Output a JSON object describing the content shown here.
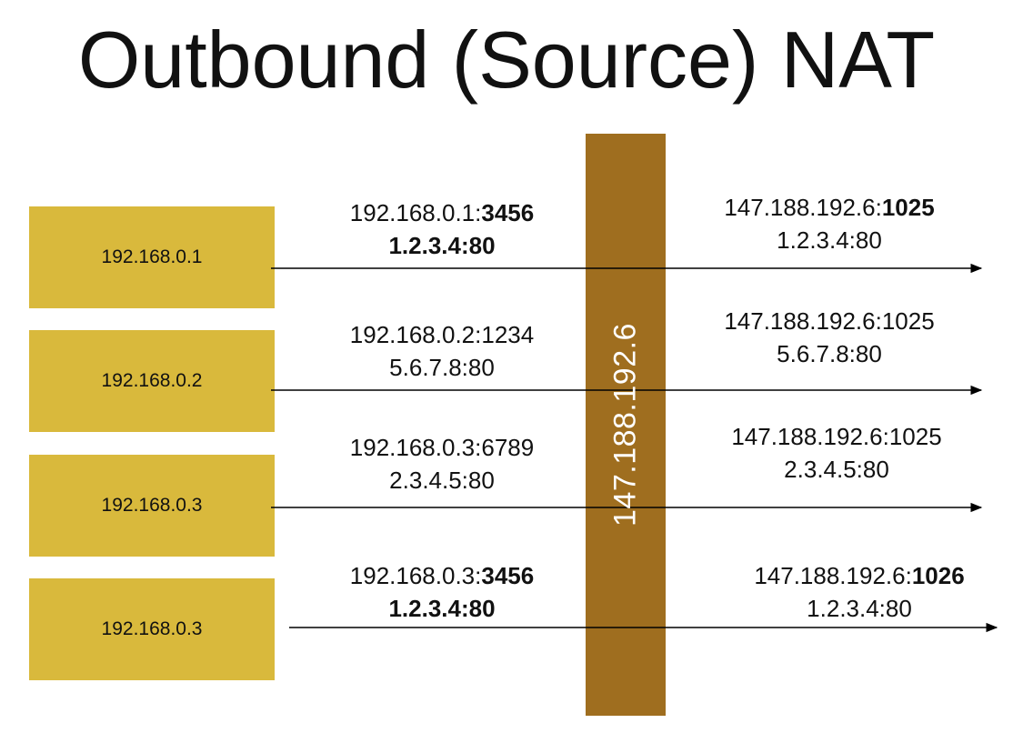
{
  "title": "Outbound (Source) NAT",
  "nat": {
    "address": "147.188.192.6",
    "bar_color": "#9f6e1f"
  },
  "host_color": "#d9b93c",
  "hosts": [
    "192.168.0.1",
    "192.168.0.2",
    "192.168.0.3",
    "192.168.0.3"
  ],
  "flows": [
    {
      "inside_src_ip": "192.168.0.1:",
      "inside_src_port": "3456",
      "inside_src_port_bold": true,
      "inside_dst": "1.2.3.4:80",
      "inside_dst_bold": true,
      "outside_src_ip": "147.188.192.6:",
      "outside_src_port": "1025",
      "outside_src_port_bold": true,
      "outside_dst": "1.2.3.4:80"
    },
    {
      "inside_src_ip": "192.168.0.2:",
      "inside_src_port": "1234",
      "inside_src_port_bold": false,
      "inside_dst": "5.6.7.8:80",
      "inside_dst_bold": false,
      "outside_src_ip": "147.188.192.6:",
      "outside_src_port": "1025",
      "outside_src_port_bold": false,
      "outside_dst": "5.6.7.8:80"
    },
    {
      "inside_src_ip": "192.168.0.3:",
      "inside_src_port": "6789",
      "inside_src_port_bold": false,
      "inside_dst": "2.3.4.5:80",
      "inside_dst_bold": false,
      "outside_src_ip": "147.188.192.6:",
      "outside_src_port": "1025",
      "outside_src_port_bold": false,
      "outside_dst": "2.3.4.5:80"
    },
    {
      "inside_src_ip": "192.168.0.3:",
      "inside_src_port": "3456",
      "inside_src_port_bold": true,
      "inside_dst": "1.2.3.4:80",
      "inside_dst_bold": true,
      "outside_src_ip": "147.188.192.6:",
      "outside_src_port": "1026",
      "outside_src_port_bold": true,
      "outside_dst": "1.2.3.4:80"
    }
  ]
}
